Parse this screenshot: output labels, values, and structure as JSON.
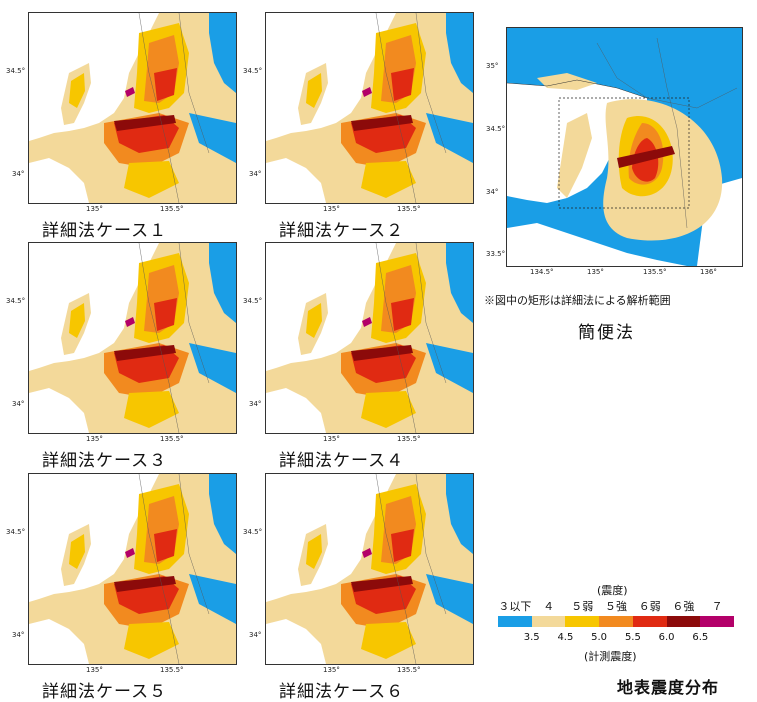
{
  "detail_panels": [
    {
      "caption": "詳細法ケース１",
      "yticks": [
        "34.5°",
        "34°"
      ],
      "xticks": [
        "135°",
        "135.5°"
      ]
    },
    {
      "caption": "詳細法ケース２",
      "yticks": [
        "34.5°",
        "34°"
      ],
      "xticks": [
        "135°",
        "135.5°"
      ]
    },
    {
      "caption": "詳細法ケース３",
      "yticks": [
        "34.5°",
        "34°"
      ],
      "xticks": [
        "135°",
        "135.5°"
      ]
    },
    {
      "caption": "詳細法ケース４",
      "yticks": [
        "34.5°",
        "34°"
      ],
      "xticks": [
        "135°",
        "135.5°"
      ]
    },
    {
      "caption": "詳細法ケース５",
      "yticks": [
        "34.5°",
        "34°"
      ],
      "xticks": [
        "135°",
        "135.5°"
      ]
    },
    {
      "caption": "詳細法ケース６",
      "yticks": [
        "34.5°",
        "34°"
      ],
      "xticks": [
        "135°",
        "135.5°"
      ]
    }
  ],
  "simple_panel": {
    "yticks": [
      "35°",
      "34.5°",
      "34°",
      "33.5°"
    ],
    "xticks": [
      "134.5°",
      "135°",
      "135.5°",
      "136°"
    ],
    "note": "※図中の矩形は詳細法による解析範囲",
    "caption": "簡便法"
  },
  "legend": {
    "top_title": "(震度)",
    "class_labels": [
      "３以下",
      "４",
      "５弱",
      "５強",
      "６弱",
      "６強",
      "７"
    ],
    "threshold_values": [
      "3.5",
      "4.5",
      "5.0",
      "5.5",
      "6.0",
      "6.5"
    ],
    "bottom_title": "(計測震度)",
    "colors": [
      "#1a9ee6",
      "#f3d99a",
      "#f7c600",
      "#f28a1f",
      "#e02a12",
      "#8c0a0a",
      "#b30069"
    ]
  },
  "figure_title": "地表震度分布"
}
